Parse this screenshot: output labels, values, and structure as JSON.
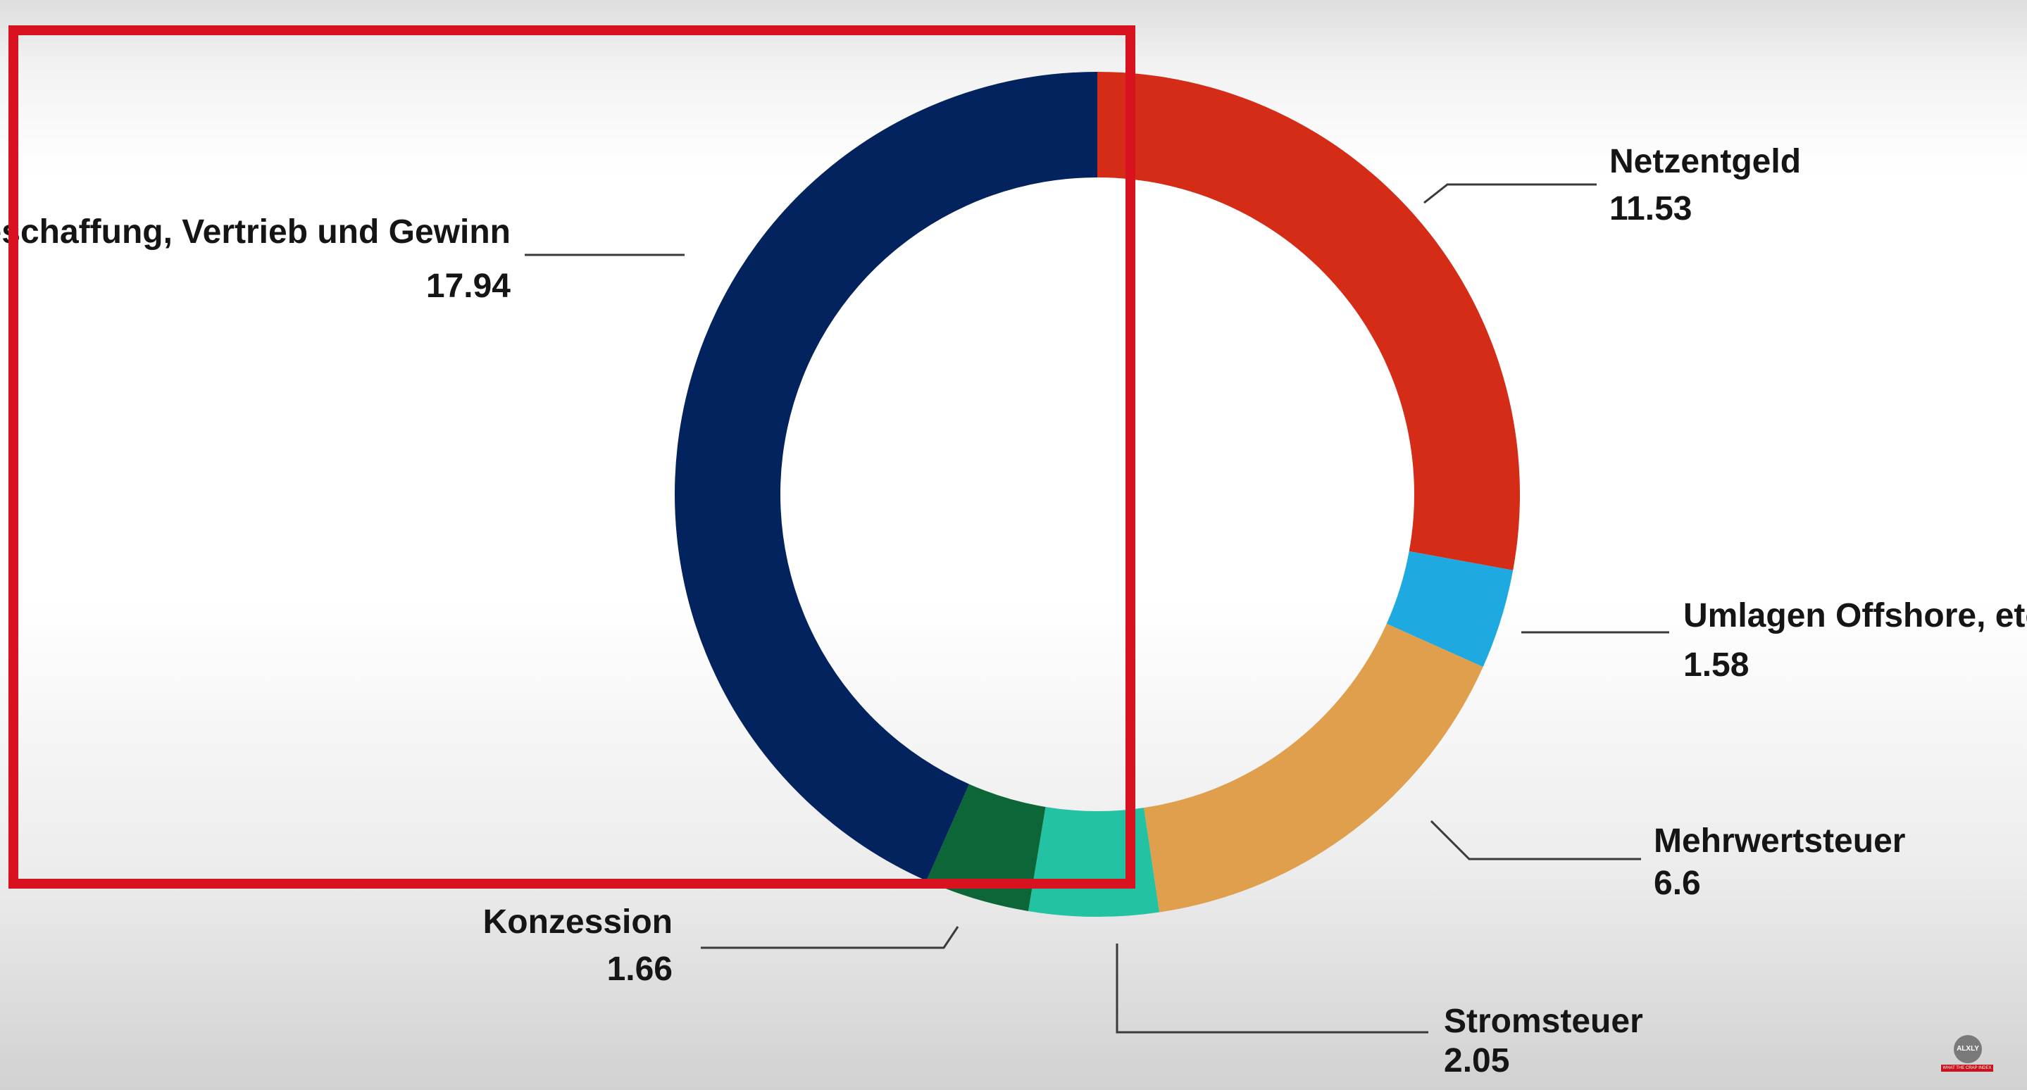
{
  "chart_data": {
    "type": "pie",
    "donut": true,
    "start_angle_deg": 0,
    "direction": "clockwise",
    "title": "",
    "slices": [
      {
        "label": "Netzentgeld",
        "value": 11.53,
        "value_label": "11.53",
        "color": "#d42c16"
      },
      {
        "label": "Umlagen Offshore, etc",
        "value": 1.58,
        "value_label": "1.58",
        "color": "#1fa9e1"
      },
      {
        "label": "Mehrwertsteuer",
        "value": 6.6,
        "value_label": "6.6",
        "color": "#df9f4c"
      },
      {
        "label": "Stromsteuer",
        "value": 2.05,
        "value_label": "2.05",
        "color": "#22c2a3"
      },
      {
        "label": "Konzession",
        "value": 1.66,
        "value_label": "1.66",
        "color": "#0d6637"
      },
      {
        "label": "Beschaffung, Vertrieb und Gewinn",
        "value": 17.94,
        "value_label": "17.94",
        "color": "#03235e"
      }
    ],
    "legend": "none",
    "labels": "outside-with-leader-lines"
  },
  "highlight": {
    "color": "#d8121f"
  },
  "logo": {
    "text": "ALXLY",
    "tagline": "WHAT THE CRAP INDEX"
  }
}
